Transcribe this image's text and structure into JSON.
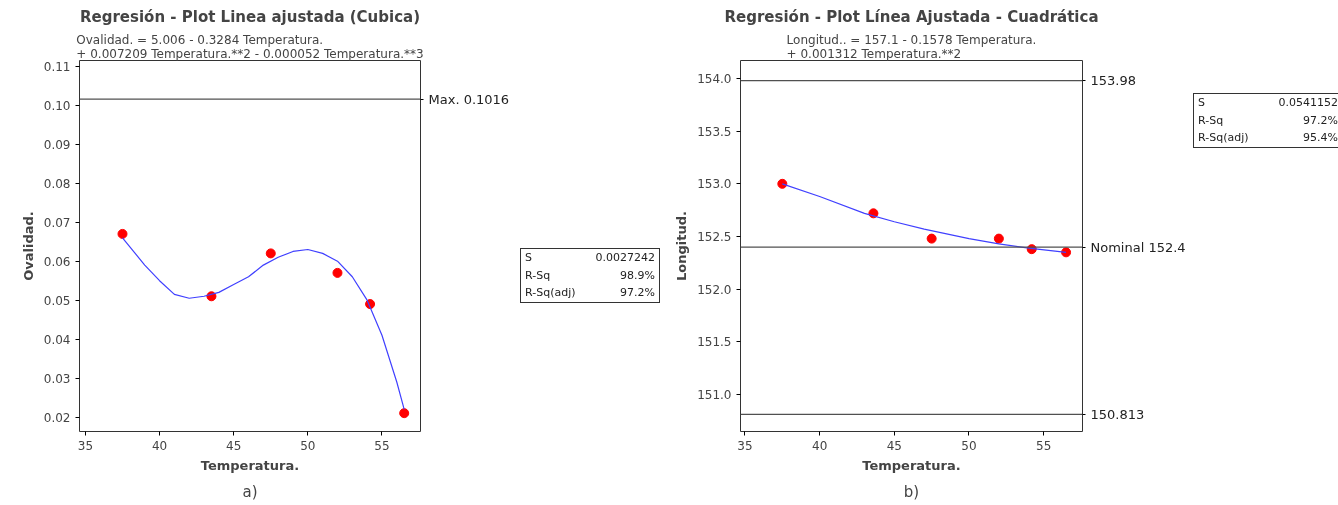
{
  "chart_data": [
    {
      "type": "scatter",
      "title": "Regresión - Plot Linea ajustada (Cubica)",
      "subtitle": "Ovalidad. = 5.006 - 0.3284 Temperatura.\n+ 0.007209 Temperatura.**2 - 0.000052 Temperatura.**3",
      "xlabel": "Temperatura.",
      "ylabel": "Ovalidad.",
      "series": [
        {
          "color": "#ff0000",
          "marker": "circle",
          "x": [
            37.5,
            43.5,
            47.5,
            52,
            54.2,
            56.5
          ],
          "values": [
            0.067,
            0.051,
            0.062,
            0.057,
            0.049,
            0.021
          ]
        },
        {
          "type": "line",
          "color": "#4040ff",
          "marker": "none",
          "x": [
            37.5,
            39,
            40,
            41,
            42,
            43,
            44,
            45,
            46,
            47,
            48,
            49,
            50,
            51,
            52,
            53,
            54,
            55,
            56,
            56.5
          ],
          "values": [
            0.066,
            0.059,
            0.055,
            0.0515,
            0.0505,
            0.051,
            0.052,
            0.054,
            0.056,
            0.059,
            0.061,
            0.0625,
            0.063,
            0.062,
            0.06,
            0.056,
            0.05,
            0.041,
            0.029,
            0.022
          ]
        }
      ],
      "xlim": [
        34.6,
        57.6
      ],
      "xticks": [
        35,
        40,
        45,
        50,
        55
      ],
      "ylim": [
        0.0163,
        0.1115
      ],
      "yticks": [
        0.02,
        0.03,
        0.04,
        0.05,
        0.06,
        0.07,
        0.08,
        0.09,
        {
          "value": 0.1,
          "label": "0.10"
        },
        0.11
      ],
      "ref_lines": [
        {
          "axis": "y",
          "value": 0.1016,
          "label": "Max. 0.1016",
          "color": "#505050"
        }
      ],
      "annotations": [
        "S",
        "0.0027242",
        "R-Sq",
        "98.9%",
        "R-Sq(adj)",
        "97.2%",
        "a)"
      ]
    },
    {
      "type": "scatter",
      "title": "Regresión - Plot Línea Ajustada - Cuadrática",
      "subtitle": "Longitud.. = 157.1 - 0.1578 Temperatura.\n+ 0.001312 Temperatura.**2",
      "xlabel": "Temperatura.",
      "ylabel": "Longitud.",
      "series": [
        {
          "color": "#ff0000",
          "marker": "circle",
          "x": [
            37.5,
            43.6,
            47.5,
            52,
            54.2,
            56.5
          ],
          "values": [
            153.0,
            152.72,
            152.48,
            152.48,
            152.38,
            152.35
          ]
        },
        {
          "type": "line",
          "color": "#4040ff",
          "marker": "none",
          "x": [
            37.5,
            40,
            43,
            45,
            47,
            50,
            52,
            54,
            56.5
          ],
          "values": [
            153.0,
            152.88,
            152.72,
            152.64,
            152.57,
            152.48,
            152.43,
            152.39,
            152.35
          ]
        }
      ],
      "xlim": [
        34.7,
        57.6
      ],
      "xticks": [
        35,
        40,
        45,
        50,
        55
      ],
      "ylim": [
        150.65,
        154.17
      ],
      "yticks": [
        {
          "value": 151,
          "label": "151.0"
        },
        151.5,
        {
          "value": 152,
          "label": "152.0"
        },
        152.5,
        {
          "value": 153,
          "label": "153.0"
        },
        153.5,
        {
          "value": 154,
          "label": "154.0"
        }
      ],
      "ref_lines": [
        {
          "axis": "y",
          "value": 153.98,
          "label": "153.98",
          "color": "#505050"
        },
        {
          "axis": "y",
          "value": 152.4,
          "label": "Nominal 152.4",
          "color": "#505050"
        },
        {
          "axis": "y",
          "value": 150.813,
          "label": "150.813",
          "color": "#505050"
        }
      ],
      "annotations": [
        "S",
        "0.0541152",
        "R-Sq",
        "97.2%",
        "R-Sq(adj)",
        "95.4%",
        "b)"
      ]
    }
  ]
}
